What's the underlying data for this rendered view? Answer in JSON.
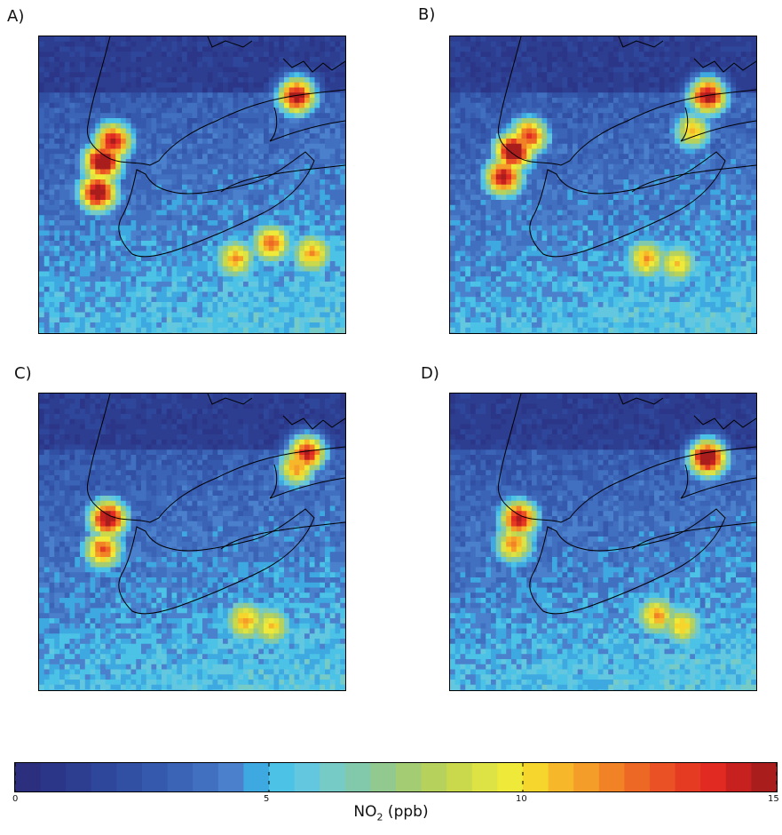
{
  "chart_data": {
    "type": "heatmap",
    "panels": [
      {
        "label": "A)",
        "hotspots": [
          {
            "gx": 12,
            "gy": 24,
            "v": 15
          },
          {
            "gx": 11,
            "gy": 30,
            "v": 14
          },
          {
            "gx": 14,
            "gy": 20,
            "v": 13
          },
          {
            "gx": 50,
            "gy": 11,
            "v": 14
          },
          {
            "gx": 45,
            "gy": 40,
            "v": 10
          },
          {
            "gx": 38,
            "gy": 43,
            "v": 9
          },
          {
            "gx": 53,
            "gy": 42,
            "v": 9
          }
        ]
      },
      {
        "label": "B)",
        "hotspots": [
          {
            "gx": 12,
            "gy": 22,
            "v": 15
          },
          {
            "gx": 10,
            "gy": 27,
            "v": 13
          },
          {
            "gx": 15,
            "gy": 19,
            "v": 12
          },
          {
            "gx": 50,
            "gy": 11,
            "v": 14
          },
          {
            "gx": 47,
            "gy": 18,
            "v": 9
          },
          {
            "gx": 38,
            "gy": 43,
            "v": 9
          },
          {
            "gx": 44,
            "gy": 44,
            "v": 8
          }
        ]
      },
      {
        "label": "C)",
        "hotspots": [
          {
            "gx": 13,
            "gy": 24,
            "v": 14
          },
          {
            "gx": 12,
            "gy": 30,
            "v": 11
          },
          {
            "gx": 52,
            "gy": 11,
            "v": 13
          },
          {
            "gx": 50,
            "gy": 14,
            "v": 10
          },
          {
            "gx": 40,
            "gy": 44,
            "v": 9
          },
          {
            "gx": 45,
            "gy": 45,
            "v": 8
          }
        ]
      },
      {
        "label": "D)",
        "hotspots": [
          {
            "gx": 13,
            "gy": 24,
            "v": 13
          },
          {
            "gx": 12,
            "gy": 29,
            "v": 10
          },
          {
            "gx": 50,
            "gy": 12,
            "v": 15
          },
          {
            "gx": 40,
            "gy": 43,
            "v": 9
          },
          {
            "gx": 45,
            "gy": 45,
            "v": 8
          }
        ]
      }
    ],
    "colorbar": {
      "min": 0,
      "max": 15,
      "ticks": [
        "0",
        "5",
        "10",
        "15"
      ],
      "colors": [
        "#2b2f7e",
        "#2c3688",
        "#2d3e91",
        "#2e479b",
        "#3150a4",
        "#3559ad",
        "#3b64b6",
        "#4170c0",
        "#4a80cc",
        "#3ea8e0",
        "#4bc2e6",
        "#63c8df",
        "#77cbc7",
        "#82c9ac",
        "#91c98f",
        "#a3cc73",
        "#b6d25c",
        "#c9d94b",
        "#dde344",
        "#efea3a",
        "#f6d52c",
        "#f6b82a",
        "#f49d28",
        "#f28226",
        "#ee6825",
        "#ea5124",
        "#e53b23",
        "#e02a22",
        "#c7211f",
        "#a91d1d"
      ]
    },
    "title_text": "NO",
    "title_sub": "2",
    "title_unit": " (ppb)"
  }
}
